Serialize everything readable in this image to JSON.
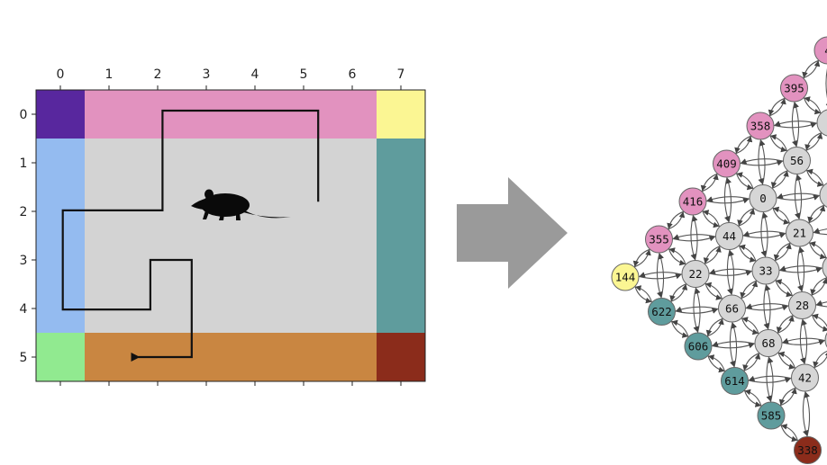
{
  "maze": {
    "x_ticks": [
      "0",
      "1",
      "2",
      "3",
      "4",
      "5",
      "6",
      "7"
    ],
    "y_ticks": [
      "0",
      "1",
      "2",
      "3",
      "4",
      "5"
    ],
    "colors": {
      "corner_top_left": "#58279e",
      "top_wall": "#e292bf",
      "corner_top_right": "#fbf693",
      "left_wall": "#94bbf0",
      "right_wall": "#5f9c9d",
      "corner_bottom_left": "#91ea90",
      "bottom_wall": "#c98641",
      "corner_bottom_right": "#8b2c1b",
      "interior": "#d3d3d3"
    },
    "trajectory": [
      [
        5.3,
        1.8
      ],
      [
        5.3,
        0
      ],
      [
        2.1,
        0
      ],
      [
        2.1,
        1.98
      ],
      [
        0.05,
        1.98
      ],
      [
        0.05,
        4.02
      ],
      [
        1.85,
        4.02
      ],
      [
        1.85,
        3.0
      ],
      [
        2.7,
        3.0
      ],
      [
        2.7,
        5.0
      ],
      [
        1.6,
        5.0
      ]
    ],
    "animal_icon": "rat-silhouette-icon"
  },
  "arrow_icon": "right-arrow-icon",
  "graph": {
    "colors": {
      "pink": "#e292bf",
      "yellow": "#fbf693",
      "teal": "#5f9c9d",
      "gray": "#d6d6d6",
      "dark_red": "#8b2c1b"
    },
    "nodes": [
      {
        "label": "144",
        "color": "yellow"
      },
      {
        "label": "355",
        "color": "pink"
      },
      {
        "label": "416",
        "color": "pink"
      },
      {
        "label": "409",
        "color": "pink"
      },
      {
        "label": "358",
        "color": "pink"
      },
      {
        "label": "395",
        "color": "pink"
      },
      {
        "label": "4",
        "color": "pink"
      },
      {
        "label": "622",
        "color": "teal"
      },
      {
        "label": "606",
        "color": "teal"
      },
      {
        "label": "614",
        "color": "teal"
      },
      {
        "label": "585",
        "color": "teal"
      },
      {
        "label": "338",
        "color": "dark_red"
      },
      {
        "label": "22",
        "color": "gray"
      },
      {
        "label": "44",
        "color": "gray"
      },
      {
        "label": "0",
        "color": "gray"
      },
      {
        "label": "56",
        "color": "gray"
      },
      {
        "label": "",
        "color": "gray"
      },
      {
        "label": "66",
        "color": "gray"
      },
      {
        "label": "33",
        "color": "gray"
      },
      {
        "label": "21",
        "color": "gray"
      },
      {
        "label": "",
        "color": "gray"
      },
      {
        "label": "68",
        "color": "gray"
      },
      {
        "label": "28",
        "color": "gray"
      },
      {
        "label": "42",
        "color": "gray"
      },
      {
        "label": "",
        "color": "gray"
      },
      {
        "label": "",
        "color": "gray"
      },
      {
        "label": "",
        "color": "gray"
      },
      {
        "label": "",
        "color": "gray"
      }
    ]
  }
}
